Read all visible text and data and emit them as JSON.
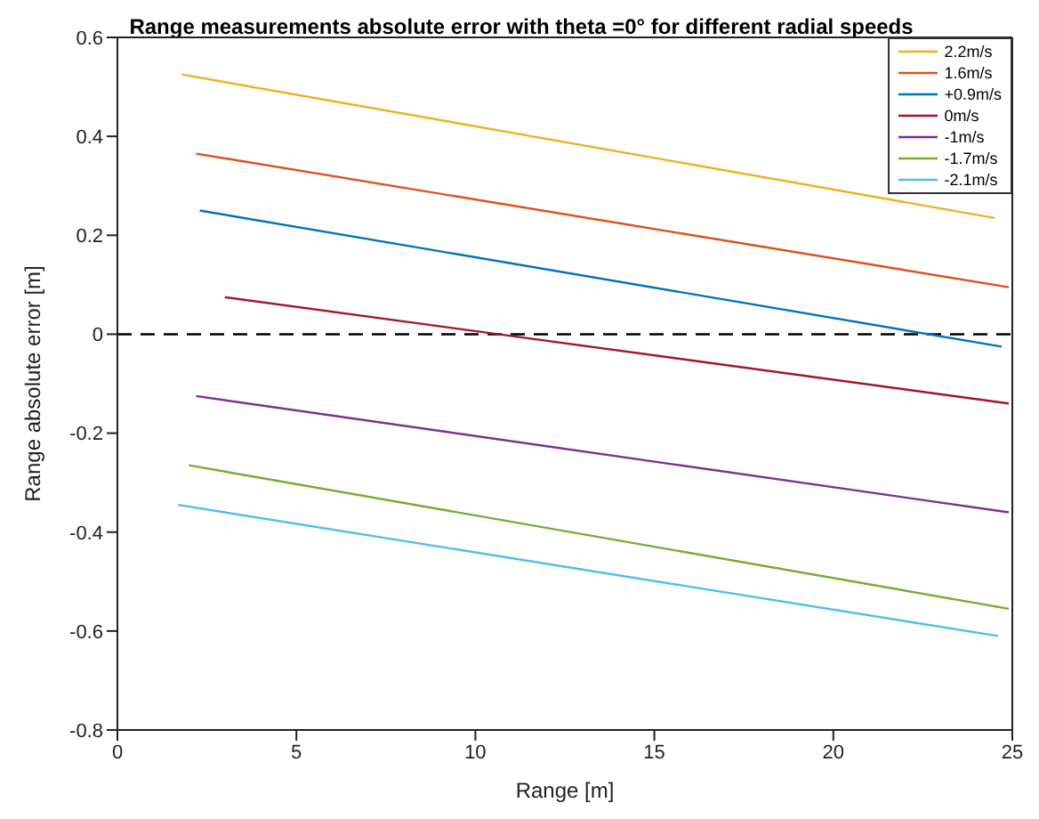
{
  "chart_data": {
    "type": "line",
    "title": "Range measurements absolute error with theta =0° for different radial speeds",
    "xlabel": "Range [m]",
    "ylabel": "Range absolute error [m]",
    "xlim": [
      0,
      25
    ],
    "xticks": [
      0,
      5,
      10,
      15,
      20,
      25
    ],
    "ylim": [
      -0.8,
      0.6
    ],
    "yticks": [
      -0.8,
      -0.6,
      -0.4,
      -0.2,
      0,
      0.2,
      0.4,
      0.6
    ],
    "legend": "top right",
    "marker": "none",
    "line_style": "solid",
    "ref_lines": [
      {
        "axis": "y",
        "value": 0,
        "label": null,
        "color": "#000000",
        "line_style": "dashed"
      }
    ],
    "series": [
      {
        "name": "2.2m/s",
        "color": "#edb120",
        "x": [
          1.8,
          24.5
        ],
        "values": [
          0.525,
          0.235
        ]
      },
      {
        "name": "1.6m/s",
        "color": "#d95319",
        "x": [
          2.2,
          24.9
        ],
        "values": [
          0.365,
          0.095
        ]
      },
      {
        "name": "+0.9m/s",
        "color": "#0072bd",
        "x": [
          2.3,
          24.7
        ],
        "values": [
          0.25,
          -0.025
        ]
      },
      {
        "name": "0m/s",
        "color": "#a2142f",
        "x": [
          3.0,
          24.9
        ],
        "values": [
          0.075,
          -0.14
        ]
      },
      {
        "name": "-1m/s",
        "color": "#7e2f8e",
        "x": [
          2.2,
          24.9
        ],
        "values": [
          -0.125,
          -0.36
        ]
      },
      {
        "name": "-1.7m/s",
        "color": "#77ac30",
        "x": [
          2.0,
          24.9
        ],
        "values": [
          -0.265,
          -0.555
        ]
      },
      {
        "name": "-2.1m/s",
        "color": "#4dbeee",
        "x": [
          1.7,
          24.6
        ],
        "values": [
          -0.345,
          -0.61
        ]
      }
    ]
  }
}
